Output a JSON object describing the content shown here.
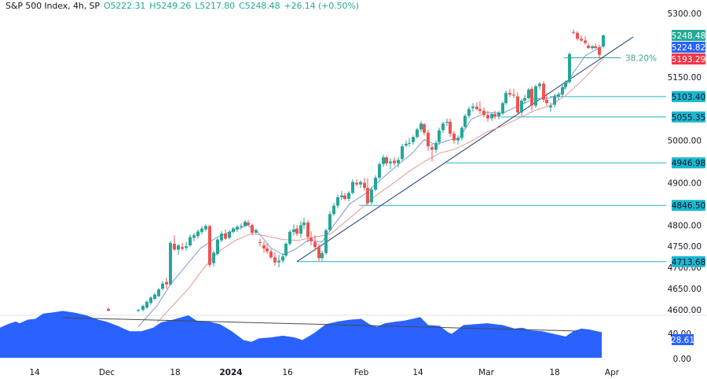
{
  "header": {
    "symbol": "S&P 500 Index, 4h, SP",
    "open": "O5222.31",
    "high": "H5249.26",
    "low": "L5217.80",
    "close": "C5248.48",
    "change": "+26.14 (+0.50%)"
  },
  "colors": {
    "up": "#26a69a",
    "down": "#ef5350",
    "ema_fast": "#7e97d6",
    "ema_slow": "#e8948f",
    "trendline": "#3f5a8a",
    "support": "#20b6c9",
    "rsi_fill": "#2962ff",
    "rsi_divergence": "#4a4a4a",
    "last_price_tag": "#22ab94",
    "ema_fast_tag": "#2962ff",
    "ema_slow_tag": "#f23645",
    "level_tag": "#1bb8d1"
  },
  "price_axis": {
    "ticks": [
      "5300.00",
      "5150.00",
      "5000.00",
      "4900.00",
      "4800.00",
      "4750.00",
      "4700.00",
      "4650.00",
      "4600.00"
    ],
    "tags": [
      {
        "label": "5248.48",
        "kind": "last_price"
      },
      {
        "label": "5224.82",
        "kind": "ema_fast"
      },
      {
        "label": "5193.29",
        "kind": "ema_slow"
      },
      {
        "label": "5103.40",
        "kind": "level"
      },
      {
        "label": "5055.35",
        "kind": "level"
      },
      {
        "label": "4946.98",
        "kind": "level"
      },
      {
        "label": "4846.50",
        "kind": "level"
      },
      {
        "label": "4713.68",
        "kind": "level"
      }
    ]
  },
  "fib_label": "38.20%",
  "rsi_axis": {
    "ticks": [
      "40.00",
      "0.00"
    ],
    "current": "28.61"
  },
  "time_axis": {
    "ticks": [
      {
        "label": "14",
        "bold": false
      },
      {
        "label": "Dec",
        "bold": false
      },
      {
        "label": "18",
        "bold": false
      },
      {
        "label": "2024",
        "bold": true
      },
      {
        "label": "16",
        "bold": false
      },
      {
        "label": "Feb",
        "bold": false
      },
      {
        "label": "14",
        "bold": false
      },
      {
        "label": "Mar",
        "bold": false
      },
      {
        "label": "18",
        "bold": false
      },
      {
        "label": "Apr",
        "bold": false
      }
    ]
  },
  "chart_data": {
    "type": "candlestick",
    "title": "S&P 500 Index, 4h, SP",
    "ohlc_last": {
      "open": 5222.31,
      "high": 5249.26,
      "low": 5217.8,
      "close": 5248.48,
      "change": 26.14,
      "change_pct": 0.5
    },
    "ylim": [
      4580,
      5320
    ],
    "y_ticks": [
      4600,
      4650,
      4700,
      4750,
      4800,
      4900,
      5000,
      5150,
      5300
    ],
    "x_ticks": [
      "14",
      "Dec",
      "18",
      "2024",
      "16",
      "Feb",
      "14",
      "Mar",
      "18",
      "Apr"
    ],
    "overlays": {
      "ema_fast_last": 5224.82,
      "ema_slow_last": 5193.29,
      "support_levels": [
        5103.4,
        5055.35,
        4946.98,
        4846.5,
        4713.68
      ],
      "fib_level": {
        "label": "38.20%",
        "price": 5195
      },
      "trendline": {
        "from": {
          "date": "~Jan 17",
          "price": 4713.68
        },
        "to": {
          "date": "~Mar 28",
          "price": 5250
        }
      }
    },
    "candles": [
      [
        138,
        4602,
        4606,
        4596,
        4598
      ],
      [
        176,
        4598,
        4602,
        4594,
        4600
      ],
      [
        182,
        4600,
        4612,
        4596,
        4609
      ],
      [
        187,
        4605,
        4622,
        4603,
        4619
      ],
      [
        192,
        4616,
        4632,
        4612,
        4629
      ],
      [
        197,
        4626,
        4640,
        4622,
        4636
      ],
      [
        202,
        4632,
        4652,
        4630,
        4648
      ],
      [
        207,
        4650,
        4668,
        4646,
        4662
      ],
      [
        212,
        4666,
        4676,
        4650,
        4660
      ],
      [
        217,
        4660,
        4762,
        4658,
        4758
      ],
      [
        222,
        4756,
        4776,
        4740,
        4742
      ],
      [
        227,
        4742,
        4756,
        4730,
        4752
      ],
      [
        232,
        4748,
        4758,
        4740,
        4744
      ],
      [
        237,
        4746,
        4760,
        4740,
        4750
      ],
      [
        242,
        4752,
        4778,
        4748,
        4772
      ],
      [
        247,
        4770,
        4782,
        4762,
        4776
      ],
      [
        252,
        4774,
        4790,
        4768,
        4785
      ],
      [
        257,
        4784,
        4798,
        4778,
        4792
      ],
      [
        262,
        4790,
        4802,
        4786,
        4798
      ],
      [
        267,
        4798,
        4800,
        4700,
        4706
      ],
      [
        272,
        4710,
        4740,
        4702,
        4735
      ],
      [
        277,
        4732,
        4770,
        4728,
        4766
      ],
      [
        282,
        4764,
        4786,
        4760,
        4780
      ],
      [
        287,
        4780,
        4790,
        4764,
        4768
      ],
      [
        292,
        4770,
        4788,
        4766,
        4784
      ],
      [
        297,
        4784,
        4796,
        4780,
        4792
      ],
      [
        302,
        4790,
        4800,
        4784,
        4796
      ],
      [
        307,
        4796,
        4804,
        4790,
        4798
      ],
      [
        312,
        4798,
        4812,
        4796,
        4808
      ],
      [
        316,
        4806,
        4812,
        4798,
        4800
      ],
      [
        321,
        4800,
        4804,
        4776,
        4782
      ],
      [
        326,
        4782,
        4792,
        4780,
        4788
      ],
      [
        331,
        4760,
        4768,
        4750,
        4758
      ],
      [
        336,
        4752,
        4762,
        4735,
        4745
      ],
      [
        340,
        4745,
        4756,
        4732,
        4738
      ],
      [
        345,
        4738,
        4744,
        4720,
        4724
      ],
      [
        350,
        4724,
        4736,
        4704,
        4712
      ],
      [
        355,
        4712,
        4730,
        4700,
        4716
      ],
      [
        360,
        4716,
        4734,
        4710,
        4726
      ],
      [
        364,
        4728,
        4760,
        4724,
        4756
      ],
      [
        369,
        4756,
        4790,
        4752,
        4784
      ],
      [
        374,
        4784,
        4802,
        4776,
        4790
      ],
      [
        378,
        4792,
        4800,
        4774,
        4780
      ],
      [
        383,
        4780,
        4810,
        4770,
        4800
      ],
      [
        387,
        4800,
        4818,
        4790,
        4806
      ],
      [
        392,
        4806,
        4812,
        4760,
        4772
      ],
      [
        396,
        4770,
        4786,
        4752,
        4762
      ],
      [
        401,
        4760,
        4776,
        4740,
        4748
      ],
      [
        406,
        4748,
        4756,
        4715,
        4722
      ],
      [
        410,
        4722,
        4740,
        4714,
        4734
      ],
      [
        415,
        4734,
        4792,
        4730,
        4788
      ],
      [
        420,
        4788,
        4832,
        4786,
        4826
      ],
      [
        425,
        4826,
        4852,
        4822,
        4846
      ],
      [
        430,
        4846,
        4872,
        4840,
        4866
      ],
      [
        435,
        4866,
        4880,
        4860,
        4870
      ],
      [
        439,
        4870,
        4876,
        4858,
        4862
      ],
      [
        444,
        4862,
        4880,
        4856,
        4876
      ],
      [
        449,
        4876,
        4908,
        4872,
        4902
      ],
      [
        454,
        4900,
        4908,
        4892,
        4896
      ],
      [
        459,
        4896,
        4906,
        4888,
        4902
      ],
      [
        464,
        4900,
        4912,
        4882,
        4888
      ],
      [
        468,
        4888,
        4910,
        4846,
        4852
      ],
      [
        473,
        4854,
        4890,
        4848,
        4884
      ],
      [
        478,
        4884,
        4918,
        4880,
        4912
      ],
      [
        483,
        4912,
        4948,
        4908,
        4944
      ],
      [
        488,
        4944,
        4966,
        4938,
        4960
      ],
      [
        492,
        4960,
        4964,
        4940,
        4946
      ],
      [
        497,
        4946,
        4958,
        4932,
        4950
      ],
      [
        502,
        4952,
        4960,
        4940,
        4946
      ],
      [
        507,
        4946,
        4960,
        4936,
        4954
      ],
      [
        512,
        4956,
        4992,
        4952,
        4986
      ],
      [
        517,
        4988,
        5000,
        4984,
        4992
      ],
      [
        521,
        4992,
        5006,
        4986,
        4994
      ],
      [
        526,
        4996,
        5012,
        4990,
        5008
      ],
      [
        531,
        5008,
        5030,
        5004,
        5026
      ],
      [
        536,
        5026,
        5046,
        5020,
        5040
      ],
      [
        540,
        5038,
        5042,
        5012,
        5018
      ],
      [
        545,
        5018,
        5026,
        4976,
        4986
      ],
      [
        550,
        4984,
        4992,
        4950,
        4978
      ],
      [
        555,
        4978,
        5000,
        4970,
        4994
      ],
      [
        559,
        4996,
        5030,
        4990,
        5024
      ],
      [
        564,
        5024,
        5044,
        5018,
        5040
      ],
      [
        569,
        5042,
        5052,
        5034,
        5044
      ],
      [
        573,
        5044,
        5052,
        5008,
        5016
      ],
      [
        578,
        5016,
        5022,
        4992,
        5000
      ],
      [
        583,
        5000,
        5012,
        4990,
        5006
      ],
      [
        588,
        5006,
        5034,
        5000,
        5030
      ],
      [
        592,
        5032,
        5062,
        5028,
        5058
      ],
      [
        597,
        5058,
        5080,
        5052,
        5074
      ],
      [
        602,
        5076,
        5088,
        5068,
        5080
      ],
      [
        607,
        5080,
        5090,
        5070,
        5074
      ],
      [
        611,
        5074,
        5092,
        5062,
        5070
      ],
      [
        616,
        5070,
        5078,
        5054,
        5060
      ],
      [
        621,
        5060,
        5070,
        5044,
        5052
      ],
      [
        626,
        5052,
        5066,
        5046,
        5062
      ],
      [
        630,
        5062,
        5070,
        5050,
        5056
      ],
      [
        635,
        5056,
        5070,
        5050,
        5066
      ],
      [
        640,
        5064,
        5092,
        5060,
        5088
      ],
      [
        644,
        5088,
        5118,
        5084,
        5112
      ],
      [
        649,
        5112,
        5122,
        5102,
        5108
      ],
      [
        654,
        5108,
        5122,
        5100,
        5106
      ],
      [
        659,
        5104,
        5114,
        5060,
        5066
      ],
      [
        664,
        5066,
        5098,
        5056,
        5094
      ],
      [
        668,
        5094,
        5108,
        5086,
        5100
      ],
      [
        673,
        5100,
        5124,
        5096,
        5120
      ],
      [
        677,
        5122,
        5128,
        5070,
        5082
      ],
      [
        682,
        5082,
        5132,
        5076,
        5128
      ],
      [
        687,
        5128,
        5138,
        5120,
        5134
      ],
      [
        692,
        5134,
        5140,
        5090,
        5096
      ],
      [
        696,
        5096,
        5112,
        5082,
        5088
      ],
      [
        701,
        5078,
        5090,
        5068,
        5082
      ],
      [
        706,
        5084,
        5110,
        5078,
        5104
      ],
      [
        711,
        5104,
        5114,
        5096,
        5108
      ],
      [
        716,
        5108,
        5132,
        5104,
        5126
      ],
      [
        720,
        5126,
        5142,
        5120,
        5138
      ],
      [
        725,
        5138,
        5208,
        5134,
        5204
      ],
      [
        730,
        5256,
        5262,
        5250,
        5254
      ],
      [
        735,
        5254,
        5258,
        5236,
        5240
      ],
      [
        740,
        5240,
        5248,
        5232,
        5236
      ],
      [
        745,
        5236,
        5246,
        5226,
        5230
      ],
      [
        749,
        5224,
        5230,
        5216,
        5218
      ],
      [
        754,
        5218,
        5226,
        5214,
        5222
      ],
      [
        758,
        5222,
        5228,
        5216,
        5218
      ],
      [
        763,
        5220,
        5226,
        5194,
        5202
      ],
      [
        768,
        5222,
        5250,
        5218,
        5248
      ]
    ],
    "ema_fast": [
      [
        176,
        4560
      ],
      [
        200,
        4610
      ],
      [
        217,
        4660
      ],
      [
        235,
        4700
      ],
      [
        255,
        4745
      ],
      [
        275,
        4770
      ],
      [
        295,
        4786
      ],
      [
        315,
        4800
      ],
      [
        330,
        4780
      ],
      [
        345,
        4746
      ],
      [
        360,
        4730
      ],
      [
        375,
        4742
      ],
      [
        392,
        4764
      ],
      [
        410,
        4760
      ],
      [
        425,
        4800
      ],
      [
        445,
        4850
      ],
      [
        465,
        4874
      ],
      [
        485,
        4908
      ],
      [
        505,
        4940
      ],
      [
        525,
        4970
      ],
      [
        540,
        5002
      ],
      [
        555,
        4990
      ],
      [
        570,
        5000
      ],
      [
        585,
        5006
      ],
      [
        600,
        5050
      ],
      [
        620,
        5066
      ],
      [
        640,
        5064
      ],
      [
        660,
        5082
      ],
      [
        680,
        5098
      ],
      [
        700,
        5100
      ],
      [
        715,
        5112
      ],
      [
        730,
        5160
      ],
      [
        745,
        5200
      ],
      [
        768,
        5224
      ]
    ],
    "ema_slow": [
      [
        200,
        4570
      ],
      [
        220,
        4610
      ],
      [
        240,
        4650
      ],
      [
        260,
        4700
      ],
      [
        280,
        4740
      ],
      [
        300,
        4764
      ],
      [
        320,
        4780
      ],
      [
        340,
        4774
      ],
      [
        360,
        4766
      ],
      [
        380,
        4764
      ],
      [
        400,
        4772
      ],
      [
        420,
        4778
      ],
      [
        440,
        4808
      ],
      [
        460,
        4840
      ],
      [
        480,
        4872
      ],
      [
        500,
        4898
      ],
      [
        520,
        4926
      ],
      [
        540,
        4950
      ],
      [
        560,
        4970
      ],
      [
        580,
        4980
      ],
      [
        600,
        4998
      ],
      [
        620,
        5020
      ],
      [
        640,
        5034
      ],
      [
        660,
        5052
      ],
      [
        680,
        5070
      ],
      [
        700,
        5082
      ],
      [
        720,
        5106
      ],
      [
        740,
        5140
      ],
      [
        768,
        5193
      ]
    ],
    "rsi": {
      "ylim": [
        0,
        60
      ],
      "ticks": [
        0,
        40
      ],
      "current": 28.61,
      "points": [
        [
          0,
          34
        ],
        [
          10,
          38
        ],
        [
          20,
          41
        ],
        [
          25,
          39
        ],
        [
          35,
          43
        ],
        [
          45,
          44
        ],
        [
          55,
          50
        ],
        [
          65,
          51
        ],
        [
          80,
          53
        ],
        [
          95,
          51
        ],
        [
          110,
          48
        ],
        [
          125,
          43
        ],
        [
          135,
          41
        ],
        [
          150,
          36
        ],
        [
          165,
          30
        ],
        [
          180,
          30
        ],
        [
          195,
          34
        ],
        [
          205,
          40
        ],
        [
          220,
          43
        ],
        [
          240,
          48
        ],
        [
          250,
          42
        ],
        [
          265,
          41
        ],
        [
          280,
          38
        ],
        [
          295,
          30
        ],
        [
          310,
          20
        ],
        [
          320,
          18
        ],
        [
          330,
          22
        ],
        [
          345,
          23
        ],
        [
          360,
          25
        ],
        [
          375,
          23
        ],
        [
          385,
          20
        ],
        [
          400,
          28
        ],
        [
          415,
          38
        ],
        [
          430,
          41
        ],
        [
          445,
          43
        ],
        [
          460,
          44
        ],
        [
          470,
          38
        ],
        [
          480,
          35
        ],
        [
          490,
          39
        ],
        [
          505,
          41
        ],
        [
          515,
          42
        ],
        [
          525,
          44
        ],
        [
          535,
          46
        ],
        [
          545,
          37
        ],
        [
          560,
          36
        ],
        [
          570,
          29
        ],
        [
          575,
          27
        ],
        [
          590,
          37
        ],
        [
          605,
          38
        ],
        [
          620,
          39
        ],
        [
          630,
          38
        ],
        [
          640,
          37
        ],
        [
          655,
          33
        ],
        [
          665,
          34
        ],
        [
          675,
          31
        ],
        [
          690,
          30
        ],
        [
          700,
          28
        ],
        [
          710,
          26
        ],
        [
          720,
          24
        ],
        [
          730,
          30
        ],
        [
          740,
          33
        ],
        [
          750,
          32
        ],
        [
          760,
          30
        ],
        [
          766,
          29
        ]
      ],
      "divergence_line": {
        "from": [
          80,
          57
        ],
        "to": [
          735,
          41
        ]
      }
    }
  }
}
